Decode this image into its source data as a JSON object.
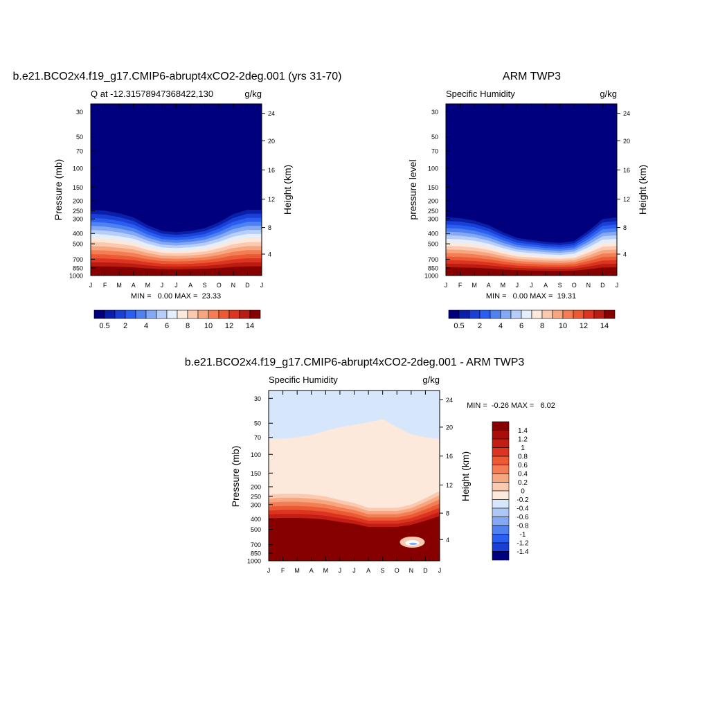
{
  "panels": [
    {
      "title": "b.e21.BCO2x4.f19_g17.CMIP6-abrupt4xCO2-2deg.001 (yrs 31-70)",
      "left_label": "Q at -12.31578947368422,130",
      "right_label": "g/kg",
      "ylabel": "Pressure (mb)",
      "ylabel_right": "Height (km)",
      "stats": "MIN =   0.00 MAX =  23.33"
    },
    {
      "title": "ARM TWP3",
      "left_label": "Specific Humidity",
      "right_label": "g/kg",
      "ylabel": "pressure level",
      "ylabel_right": "Height (km)",
      "stats": "MIN =   0.00 MAX =  19.31"
    },
    {
      "title": "b.e21.BCO2x4.f19_g17.CMIP6-abrupt4xCO2-2deg.001 - ARM TWP3",
      "left_label": "Specific Humidity",
      "right_label": "g/kg",
      "ylabel": "Pressure (mb)",
      "ylabel_right": "Height (km)",
      "stats": "MIN =  -0.26 MAX =   6.02"
    }
  ],
  "chart_data": [
    {
      "type": "heatmap",
      "title": "b.e21.BCO2x4.f19_g17.CMIP6-abrupt4xCO2-2deg.001 (yrs 31-70)",
      "variable": "Q at -12.31578947368422,130",
      "units": "g/kg",
      "x_ticks": [
        "J",
        "F",
        "M",
        "A",
        "M",
        "J",
        "J",
        "A",
        "S",
        "O",
        "N",
        "D",
        "J"
      ],
      "y_ticks_pressure": [
        30,
        50,
        70,
        100,
        150,
        200,
        250,
        300,
        400,
        500,
        700,
        850,
        1000
      ],
      "y_ticks_height": [
        24,
        20,
        16,
        12,
        8,
        4
      ],
      "ylim": [
        30,
        1000
      ],
      "y_scale": "log",
      "min": 0.0,
      "max": 23.33,
      "moist_layer_top_hPa": [
        245,
        250,
        265,
        290,
        340,
        380,
        390,
        380,
        360,
        320,
        270,
        245,
        245
      ],
      "colorbar": {
        "orientation": "horizontal",
        "labels": [
          "0.5",
          "2",
          "4",
          "6",
          "8",
          "10",
          "12",
          "14"
        ],
        "colors": [
          "#00007f",
          "#0a1fa8",
          "#1a3fd6",
          "#2a5ef0",
          "#4f82f0",
          "#84a8f4",
          "#b8cefa",
          "#e4eefd",
          "#fde8dc",
          "#fac9b0",
          "#f7a680",
          "#f37d55",
          "#ec5a34",
          "#dc3420",
          "#b91c10",
          "#870000"
        ]
      }
    },
    {
      "type": "heatmap",
      "title": "ARM TWP3",
      "variable": "Specific Humidity",
      "units": "g/kg",
      "x_ticks": [
        "J",
        "F",
        "M",
        "A",
        "M",
        "J",
        "J",
        "A",
        "S",
        "O",
        "N",
        "D",
        "J"
      ],
      "y_ticks_pressure": [
        30,
        50,
        70,
        100,
        150,
        200,
        250,
        300,
        400,
        500,
        700,
        850,
        1000
      ],
      "y_ticks_height": [
        24,
        20,
        16,
        12,
        8,
        4
      ],
      "ylim": [
        30,
        1000
      ],
      "y_scale": "log",
      "min": 0.0,
      "max": 19.31,
      "moist_layer_top_hPa": [
        290,
        295,
        310,
        340,
        390,
        440,
        460,
        480,
        490,
        470,
        380,
        300,
        290
      ],
      "colorbar": {
        "orientation": "horizontal",
        "labels": [
          "0.5",
          "2",
          "4",
          "6",
          "8",
          "10",
          "12",
          "14"
        ],
        "colors": [
          "#00007f",
          "#0a1fa8",
          "#1a3fd6",
          "#2a5ef0",
          "#4f82f0",
          "#84a8f4",
          "#b8cefa",
          "#e4eefd",
          "#fde8dc",
          "#fac9b0",
          "#f7a680",
          "#f37d55",
          "#ec5a34",
          "#dc3420",
          "#b91c10",
          "#870000"
        ]
      }
    },
    {
      "type": "heatmap",
      "title": "b.e21.BCO2x4.f19_g17.CMIP6-abrupt4xCO2-2deg.001 - ARM TWP3",
      "variable": "Specific Humidity",
      "units": "g/kg",
      "x_ticks": [
        "J",
        "F",
        "M",
        "A",
        "M",
        "J",
        "J",
        "A",
        "S",
        "O",
        "N",
        "D",
        "J"
      ],
      "y_ticks_pressure": [
        30,
        50,
        70,
        100,
        150,
        200,
        250,
        300,
        400,
        500,
        700,
        850,
        1000
      ],
      "y_ticks_height": [
        24,
        20,
        16,
        12,
        8,
        4
      ],
      "ylim": [
        30,
        1000
      ],
      "y_scale": "log",
      "min": -0.26,
      "max": 6.02,
      "zero_contour_hPa": [
        72,
        72,
        70,
        66,
        60,
        55,
        52,
        49,
        46,
        55,
        65,
        70,
        72
      ],
      "moist_layer_top_hPa": [
        240,
        235,
        235,
        240,
        250,
        270,
        290,
        320,
        320,
        320,
        300,
        260,
        220
      ],
      "colorbar": {
        "orientation": "vertical",
        "labels": [
          "1.4",
          "1.2",
          "1",
          "0.8",
          "0.6",
          "0.4",
          "0.2",
          "0",
          "-0.2",
          "-0.4",
          "-0.6",
          "-0.8",
          "-1",
          "-1.2",
          "-1.4"
        ],
        "colors": [
          "#870000",
          "#a70e0a",
          "#c41e14",
          "#dc3420",
          "#ec5a34",
          "#f37d55",
          "#f7a680",
          "#fac9b0",
          "#fde8dc",
          "#d6e6fb",
          "#aec8f6",
          "#84a8f4",
          "#4f82f0",
          "#2a5ef0",
          "#1a3fd6",
          "#00007f"
        ]
      }
    }
  ]
}
